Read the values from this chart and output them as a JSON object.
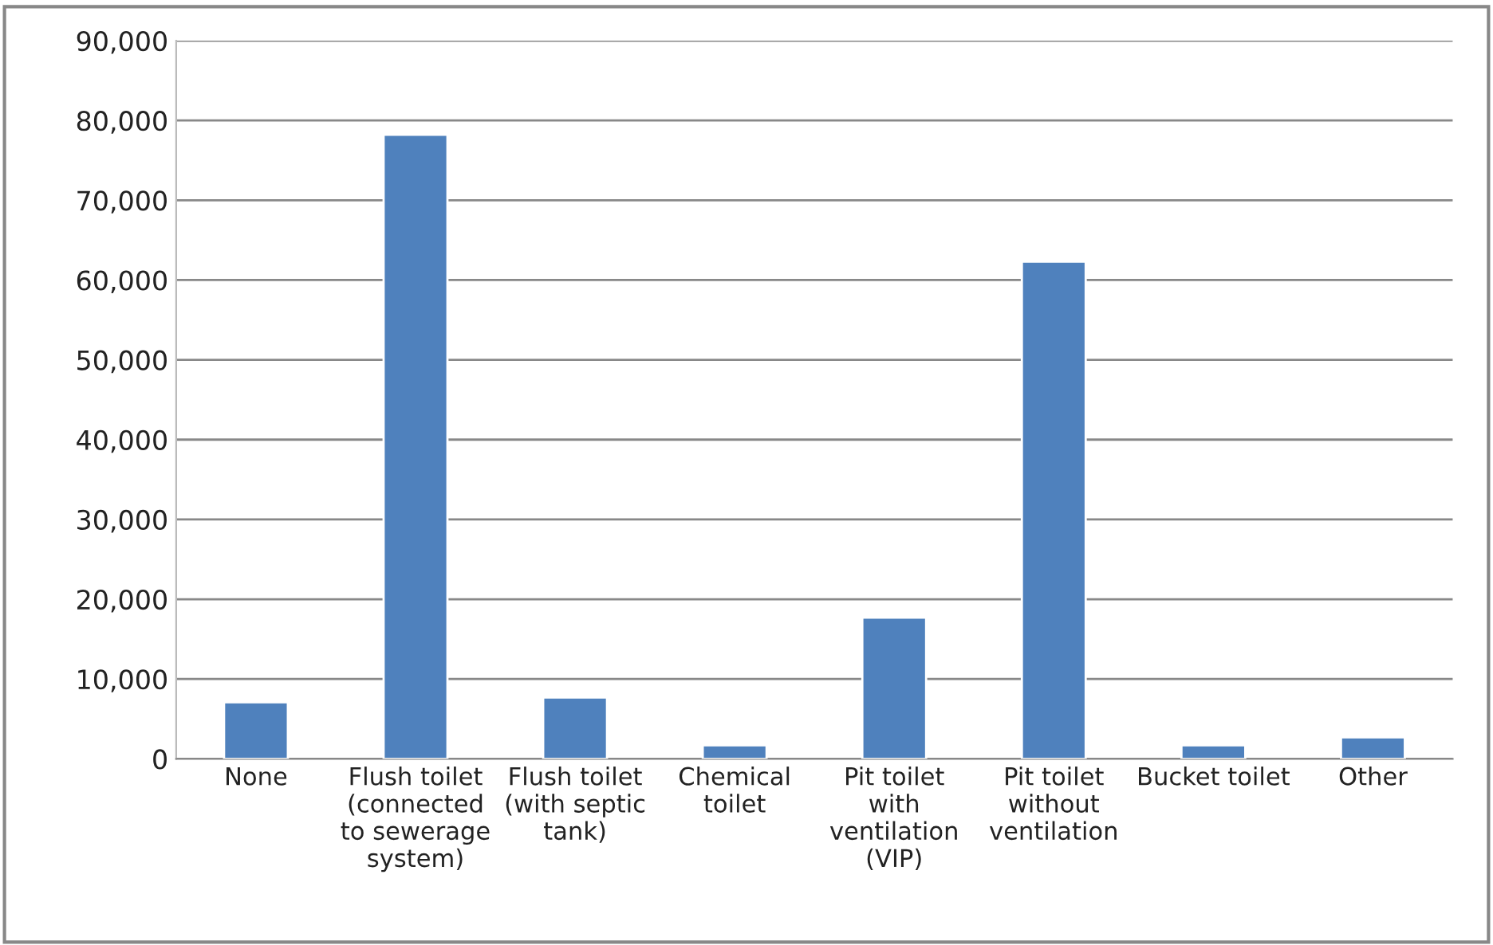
{
  "chart_data": {
    "type": "bar",
    "categories": [
      "None",
      "Flush toilet\n(connected\nto sewerage\nsystem)",
      "Flush toilet\n(with septic\ntank)",
      "Chemical\ntoilet",
      "Pit toilet\nwith\nventilation\n(VIP)",
      "Pit toilet\nwithout\nventilation",
      "Bucket toilet",
      "Other"
    ],
    "values": [
      7100,
      78200,
      7700,
      1700,
      17700,
      62300,
      1700,
      2700
    ],
    "color": "#4f81bd",
    "ylim": [
      0,
      90000
    ],
    "yticks": [
      {
        "value": 0,
        "label": "0"
      },
      {
        "value": 10000,
        "label": "10,000"
      },
      {
        "value": 20000,
        "label": "20,000"
      },
      {
        "value": 30000,
        "label": "30,000"
      },
      {
        "value": 40000,
        "label": "40,000"
      },
      {
        "value": 50000,
        "label": "50,000"
      },
      {
        "value": 60000,
        "label": "60,000"
      },
      {
        "value": 70000,
        "label": "70,000"
      },
      {
        "value": 80000,
        "label": "80,000"
      },
      {
        "value": 90000,
        "label": "90,000"
      }
    ],
    "grid": "y",
    "legend": false
  }
}
